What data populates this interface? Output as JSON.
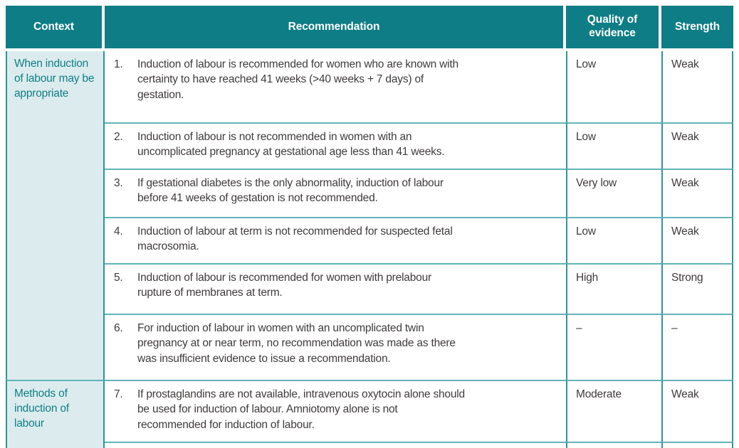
{
  "colors": {
    "header_bg": "#0e7d86",
    "header_text": "#ffffff",
    "context_bg": "#dcecee",
    "context_text": "#0f7e87",
    "border_dark": "#2f939c",
    "border_light": "#62b3b9",
    "body_text": "#403b3b",
    "page_bg": "#ffffff"
  },
  "table": {
    "headers": [
      "Context",
      "Recommendation",
      "Quality of evidence",
      "Strength"
    ],
    "sections": [
      {
        "context": "When induction of labour may be appropriate",
        "rows": [
          {
            "num": "1.",
            "text": "Induction of labour is recommended for women who are known with certainty to have reached 41 weeks (>40 weeks + 7 days) of gestation.",
            "quality": "Low",
            "strength": "Weak"
          },
          {
            "num": "2.",
            "text": "Induction of labour is not recommended in women with an uncomplicated pregnancy at gestational age less than 41 weeks.",
            "quality": "Low",
            "strength": "Weak"
          },
          {
            "num": "3.",
            "text": "If gestational diabetes is the only abnormality, induction of labour before 41 weeks of gestation is not recommended.",
            "quality": "Very low",
            "strength": "Weak"
          },
          {
            "num": "4.",
            "text": "Induction of labour at term is not recommended for suspected fetal macrosomia.",
            "quality": "Low",
            "strength": "Weak"
          },
          {
            "num": "5.",
            "text": "Induction of labour is recommended for women with prelabour rupture of membranes at term.",
            "quality": "High",
            "strength": "Strong"
          },
          {
            "num": "6.",
            "text": "For induction of labour in women with an uncomplicated twin pregnancy at or near term, no recommendation was made as there was insufficient evidence to issue a recommendation.",
            "quality": "–",
            "strength": "–"
          }
        ]
      },
      {
        "context": "Methods of induction of labour",
        "rows": [
          {
            "num": "7.",
            "text": "If prostaglandins are not available, intravenous oxytocin alone should be used for induction of labour. Amniotomy alone is not recommended for induction of labour.",
            "quality": "Moderate",
            "strength": "Weak"
          }
        ]
      }
    ]
  }
}
